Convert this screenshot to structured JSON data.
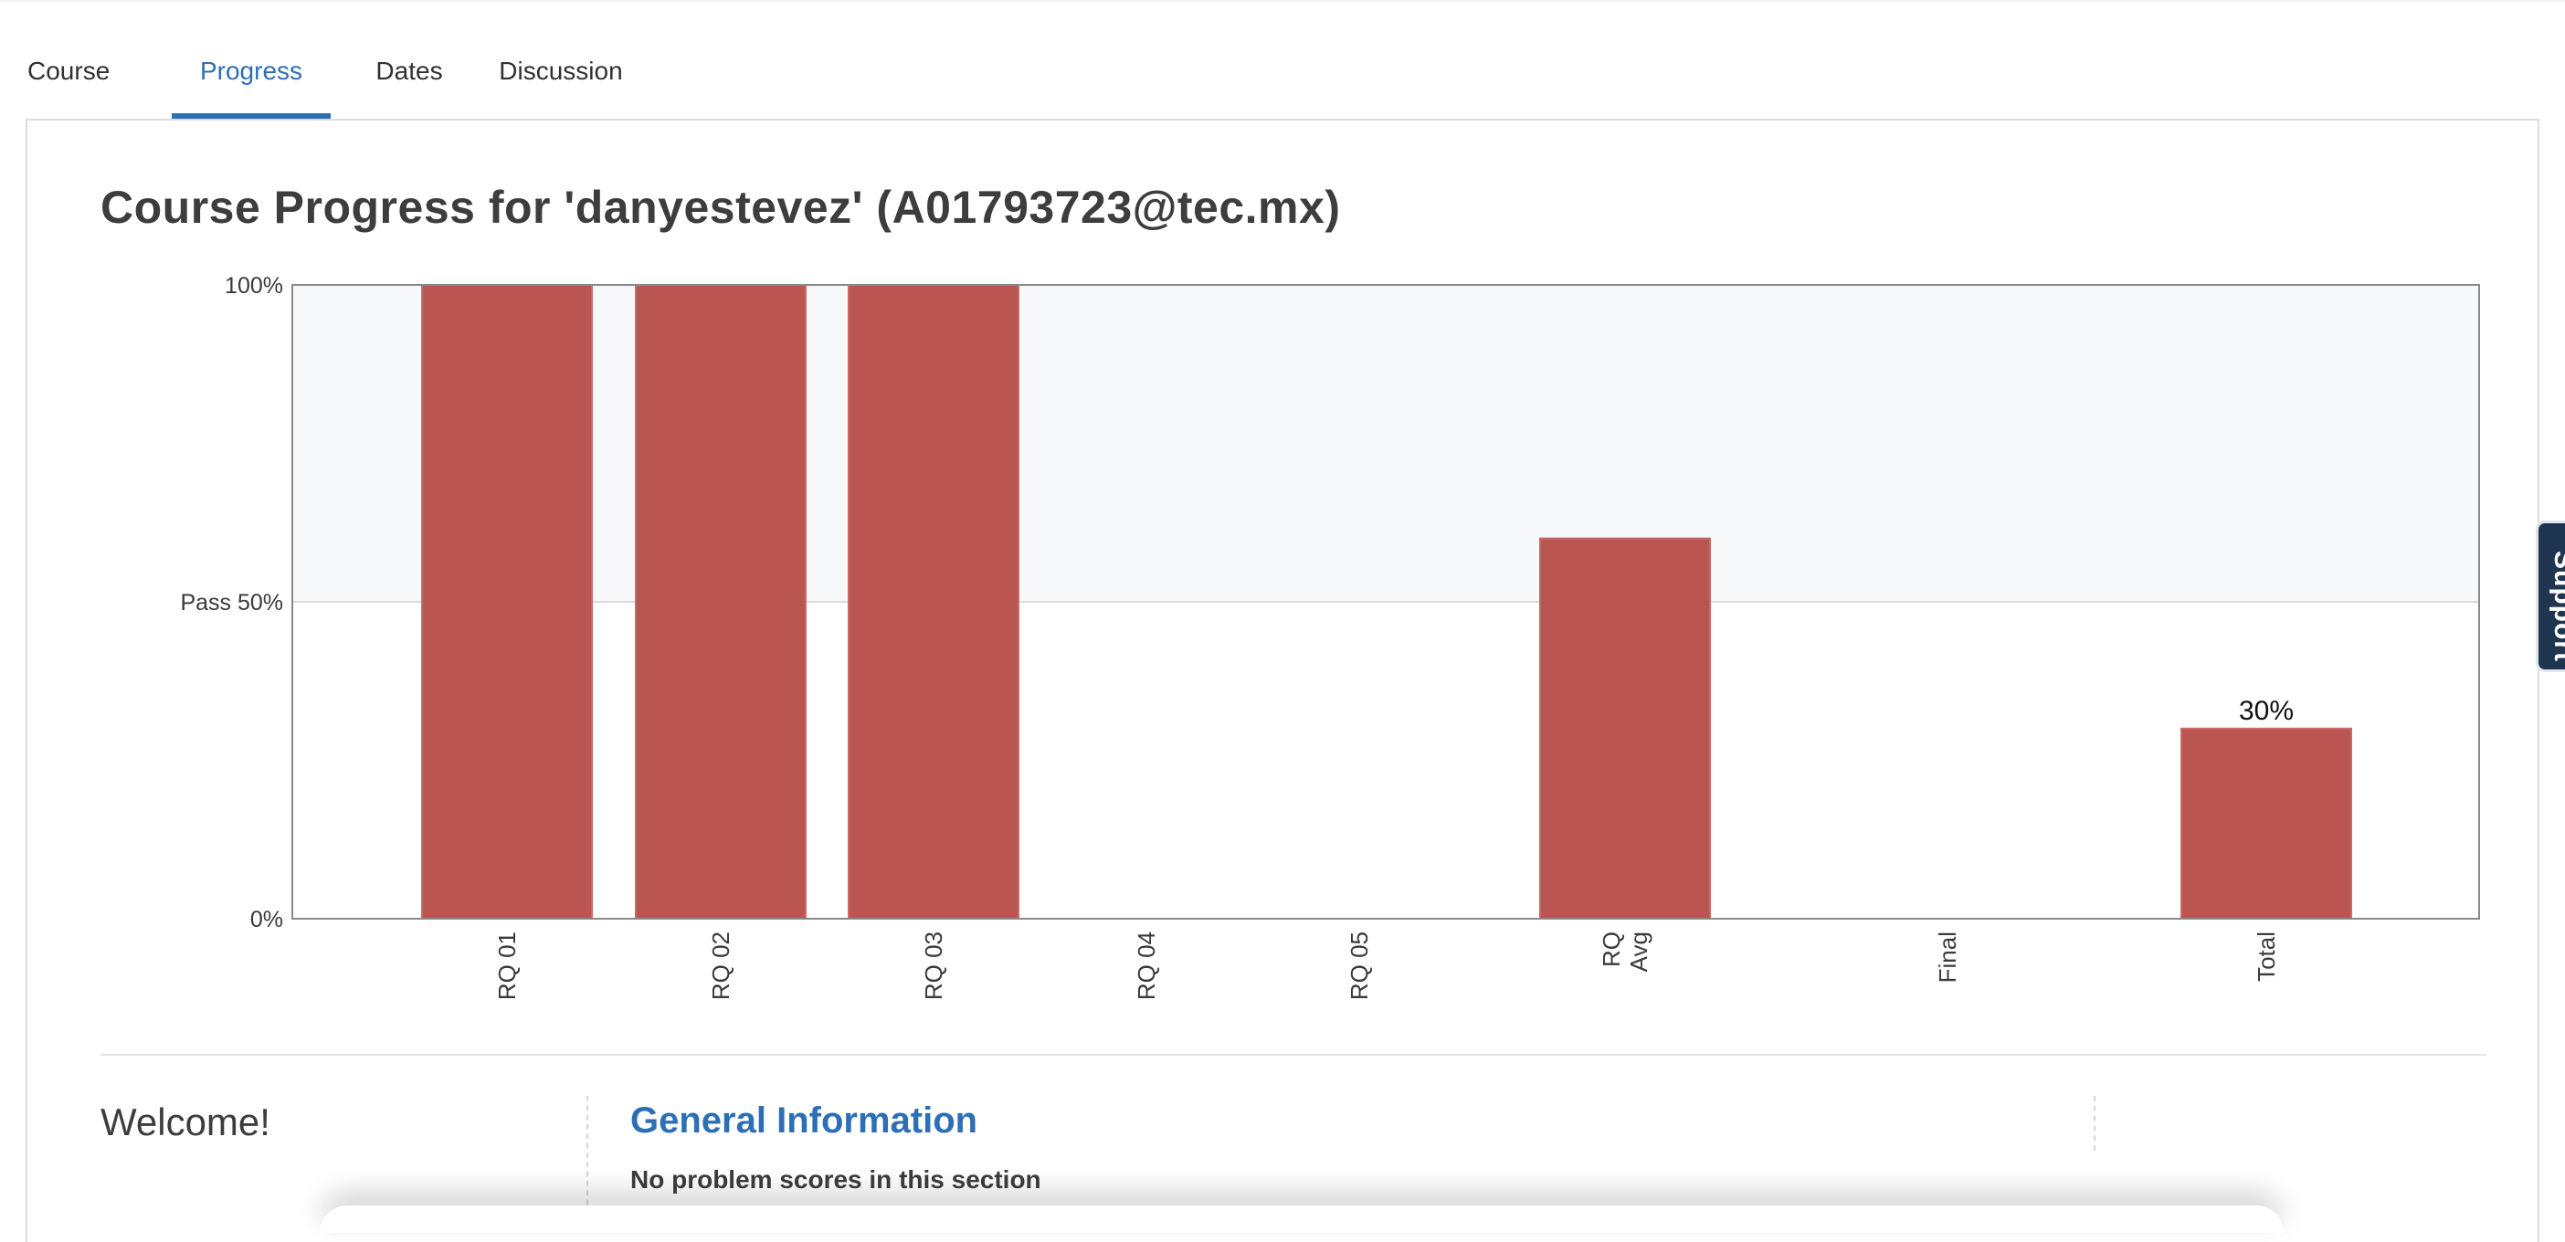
{
  "tabs": [
    {
      "label": "Course",
      "active": false
    },
    {
      "label": "Progress",
      "active": true
    },
    {
      "label": "Dates",
      "active": false
    },
    {
      "label": "Discussion",
      "active": false
    }
  ],
  "page_title": "Course Progress for 'danyestevez' (A01793723@tec.mx)",
  "support_label": "Support",
  "welcome": "Welcome!",
  "section": {
    "title": "General Information",
    "note": "No problem scores in this section"
  },
  "colors": {
    "accent": "#2d6fb5",
    "bar": "#b84e4b",
    "pass_band": "#f7f8fa"
  },
  "chart_data": {
    "type": "bar",
    "categories": [
      "RQ 01",
      "RQ 02",
      "RQ 03",
      "RQ 04",
      "RQ 05",
      "RQ\nAvg",
      "Final",
      "Total"
    ],
    "values": [
      100,
      100,
      100,
      0,
      0,
      60,
      0,
      30
    ],
    "value_labels": [
      "",
      "",
      "",
      "",
      "",
      "",
      "",
      "30%"
    ],
    "y_ticks": [
      {
        "value": 0,
        "label": "0%"
      },
      {
        "value": 50,
        "label": "Pass 50%"
      },
      {
        "value": 100,
        "label": "100%"
      }
    ],
    "ylim": [
      0,
      100
    ],
    "pass_threshold": 50,
    "title": "",
    "xlabel": "",
    "ylabel": ""
  }
}
